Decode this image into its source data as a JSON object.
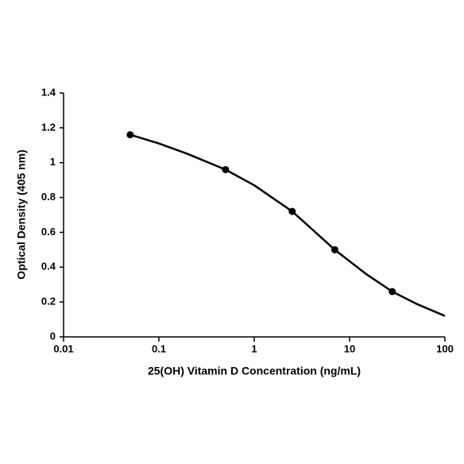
{
  "chart_data": {
    "type": "scatter",
    "x_label": "25(OH) Vitamin D Concentration (ng/mL)",
    "y_label": "Optical Density (405 nm)",
    "x_scale": "log",
    "xlim": [
      0.01,
      100
    ],
    "xticks": [
      0.01,
      0.1,
      1,
      10,
      100
    ],
    "ylim": [
      0,
      1.4
    ],
    "yticks": [
      0,
      0.2,
      0.4,
      0.6,
      0.8,
      1,
      1.2,
      1.4
    ],
    "grid": false,
    "series": [
      {
        "kind": "points",
        "color": "#000000",
        "x": [
          0.05,
          0.5,
          2.5,
          7,
          28
        ],
        "values": [
          1.16,
          0.96,
          0.72,
          0.5,
          0.26
        ]
      },
      {
        "kind": "curve",
        "color": "#000000",
        "x": [
          0.05,
          0.1,
          0.2,
          0.5,
          1,
          2.5,
          4,
          7,
          15,
          28,
          50,
          100
        ],
        "values": [
          1.16,
          1.11,
          1.05,
          0.96,
          0.87,
          0.72,
          0.62,
          0.5,
          0.36,
          0.26,
          0.19,
          0.12
        ]
      }
    ]
  }
}
